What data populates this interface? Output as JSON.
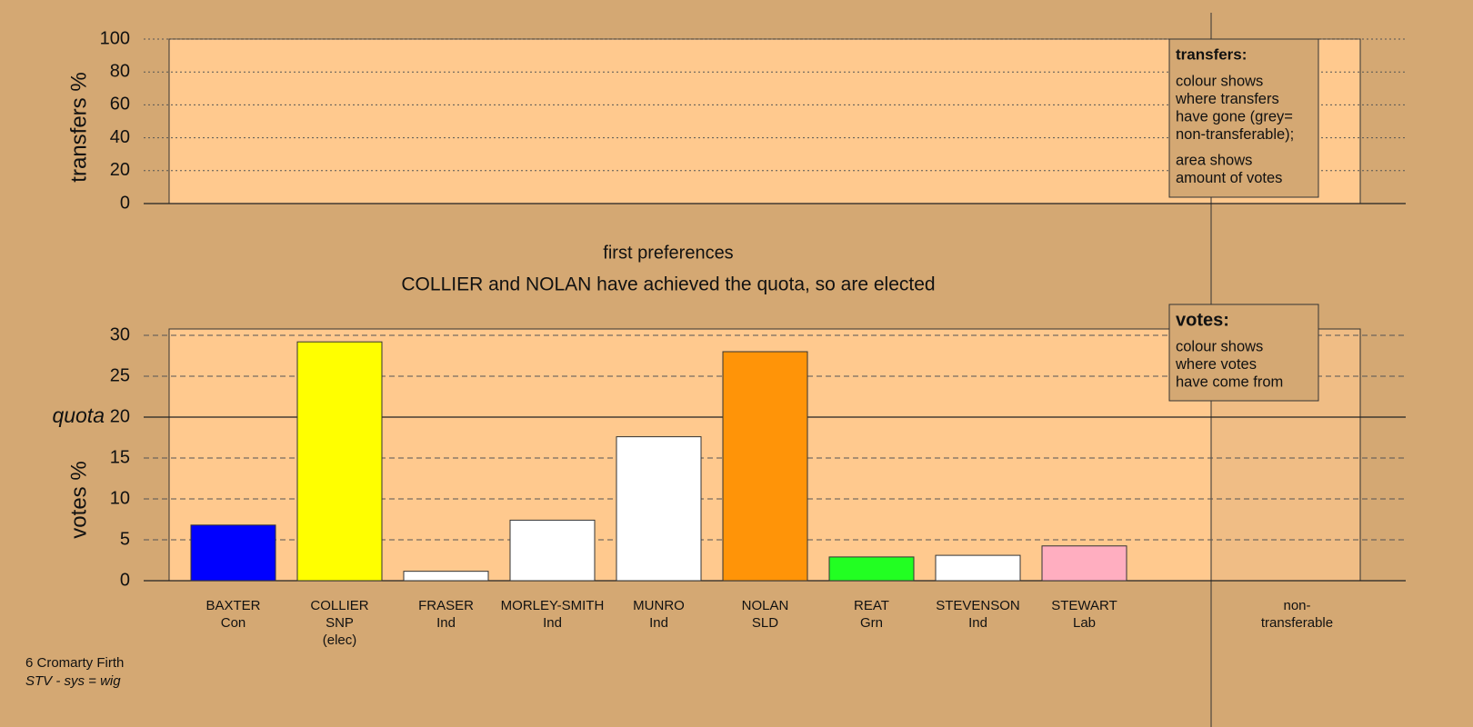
{
  "chart_data": [
    {
      "type": "bar",
      "ylabel": "transfers %",
      "ylim": [
        0,
        100
      ],
      "yticks": [
        0,
        20,
        40,
        60,
        80,
        100
      ],
      "grid": true,
      "legend": {
        "title": "transfers:",
        "paragraphs": [
          [
            "colour shows",
            "where transfers",
            "have gone (grey=",
            "non-transferable);"
          ],
          [
            "area shows",
            "amount of votes"
          ]
        ]
      }
    },
    {
      "type": "bar",
      "title": "first preferences",
      "subtitle": "COLLIER and NOLAN have achieved the quota, so are elected",
      "ylabel": "votes %",
      "ylim": [
        0,
        30
      ],
      "yticks": [
        0,
        5,
        10,
        15,
        20,
        25,
        30
      ],
      "grid": true,
      "quota": {
        "label": "quota",
        "value": 20
      },
      "categories": [
        [
          "BAXTER",
          "Con"
        ],
        [
          "COLLIER",
          "SNP",
          "(elec)"
        ],
        [
          "FRASER",
          "Ind"
        ],
        [
          "MORLEY-SMITH",
          "Ind"
        ],
        [
          "MUNRO",
          "Ind"
        ],
        [
          "NOLAN",
          "SLD"
        ],
        [
          "REAT",
          "Grn"
        ],
        [
          "STEVENSON",
          "Ind"
        ],
        [
          "STEWART",
          "Lab"
        ],
        [
          "non-",
          "transferable"
        ]
      ],
      "values": [
        6.8,
        29.2,
        1.15,
        7.4,
        17.6,
        28.0,
        2.9,
        3.1,
        4.25,
        null
      ],
      "colors": [
        "#0000ff",
        "#ffff00",
        "#ffffff",
        "#ffffff",
        "#ffffff",
        "#ff9408",
        "#22ff22",
        "#ffffff",
        "#ffaec0",
        null
      ],
      "legend": {
        "title": "votes:",
        "paragraphs": [
          [
            "colour shows",
            "where votes",
            "have come from"
          ]
        ]
      }
    }
  ],
  "footer": {
    "constituency": "6 Cromarty Firth",
    "system": "STV - sys = wig"
  }
}
